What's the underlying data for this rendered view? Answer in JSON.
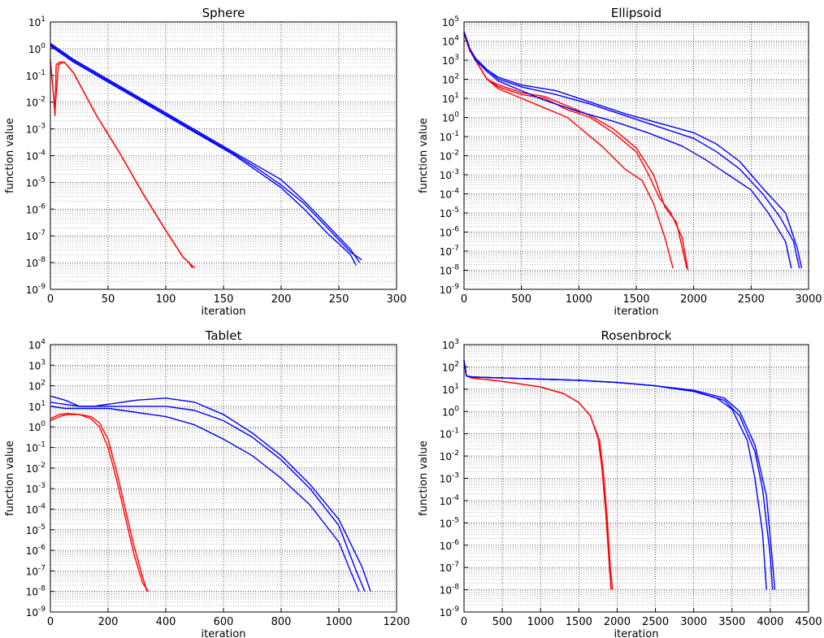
{
  "colors": {
    "red": "#ff0000",
    "blue": "#0000ff",
    "grid": "#000000",
    "axes": "#000000"
  },
  "chart_data": [
    {
      "type": "line",
      "title": "Sphere",
      "xlabel": "iteration",
      "ylabel": "function value",
      "yscale": "log",
      "grid": true,
      "xlim": [
        0,
        300
      ],
      "ylim_exp": [
        -9,
        1
      ],
      "xticks": [
        "0",
        "50",
        "100",
        "150",
        "200",
        "250",
        "300"
      ],
      "series": [
        {
          "color": "red",
          "x": [
            0,
            3,
            4,
            5,
            8,
            12,
            20,
            40,
            60,
            80,
            100,
            115,
            120,
            123
          ],
          "log10y": [
            -0.4,
            -1.9,
            -2.5,
            -0.6,
            -0.5,
            -0.5,
            -0.9,
            -2.5,
            -3.9,
            -5.4,
            -6.8,
            -7.8,
            -8.0,
            -8.2
          ]
        },
        {
          "color": "red",
          "x": [
            0,
            4,
            7,
            12,
            20,
            40,
            60,
            80,
            100,
            115,
            120,
            125
          ],
          "log10y": [
            -0.5,
            -2.3,
            -0.6,
            -0.5,
            -0.9,
            -2.5,
            -3.9,
            -5.4,
            -6.8,
            -7.8,
            -8.0,
            -8.2
          ]
        },
        {
          "color": "blue",
          "x": [
            0,
            20,
            40,
            60,
            80,
            100,
            120,
            140,
            160,
            180,
            200,
            220,
            240,
            260,
            268
          ],
          "log10y": [
            0.2,
            -0.4,
            -0.9,
            -1.4,
            -1.9,
            -2.4,
            -2.9,
            -3.4,
            -3.9,
            -4.4,
            -4.9,
            -5.7,
            -6.6,
            -7.5,
            -8.0
          ]
        },
        {
          "color": "blue",
          "x": [
            0,
            20,
            40,
            60,
            80,
            100,
            120,
            140,
            160,
            180,
            200,
            220,
            240,
            260,
            265
          ],
          "log10y": [
            0.1,
            -0.5,
            -1.0,
            -1.5,
            -2.0,
            -2.5,
            -3.0,
            -3.5,
            -4.0,
            -4.6,
            -5.2,
            -6.0,
            -6.9,
            -7.7,
            -8.1
          ]
        },
        {
          "color": "blue",
          "x": [
            0,
            20,
            40,
            60,
            80,
            100,
            120,
            140,
            160,
            180,
            200,
            220,
            240,
            260,
            270
          ],
          "log10y": [
            0.15,
            -0.45,
            -0.95,
            -1.45,
            -1.95,
            -2.45,
            -2.95,
            -3.45,
            -3.95,
            -4.5,
            -5.1,
            -5.8,
            -6.7,
            -7.6,
            -7.9
          ]
        }
      ]
    },
    {
      "type": "line",
      "title": "Ellipsoid",
      "xlabel": "iteration",
      "ylabel": "function value",
      "yscale": "log",
      "grid": true,
      "xlim": [
        0,
        3000
      ],
      "ylim_exp": [
        -9,
        5
      ],
      "xticks": [
        "0",
        "500",
        "1000",
        "1500",
        "2000",
        "2500",
        "3000"
      ],
      "series": [
        {
          "color": "red",
          "x": [
            0,
            50,
            100,
            200,
            300,
            500,
            700,
            900,
            1000,
            1200,
            1400,
            1550,
            1650,
            1750,
            1820
          ],
          "log10y": [
            4.4,
            3.5,
            3.0,
            2.0,
            1.5,
            1.0,
            0.5,
            0,
            -0.5,
            -1.5,
            -2.7,
            -3.3,
            -4.5,
            -6.3,
            -7.9
          ]
        },
        {
          "color": "red",
          "x": [
            0,
            50,
            100,
            200,
            300,
            500,
            700,
            900,
            1100,
            1300,
            1500,
            1600,
            1700,
            1800,
            1900,
            1950
          ],
          "log10y": [
            4.4,
            3.5,
            3.0,
            2.0,
            1.6,
            1.2,
            1.0,
            0.4,
            0.0,
            -0.8,
            -1.8,
            -2.9,
            -4.2,
            -5.0,
            -6.3,
            -8.0
          ]
        },
        {
          "color": "red",
          "x": [
            0,
            50,
            100,
            200,
            300,
            500,
            700,
            900,
            1100,
            1300,
            1500,
            1650,
            1750,
            1850,
            1940
          ],
          "log10y": [
            4.4,
            3.5,
            3.0,
            2.0,
            1.7,
            1.3,
            1.1,
            0.6,
            0.1,
            -0.6,
            -1.6,
            -3.0,
            -4.7,
            -5.5,
            -7.9
          ]
        },
        {
          "color": "blue",
          "x": [
            0,
            50,
            100,
            200,
            300,
            500,
            700,
            1000,
            1300,
            1600,
            1900,
            2100,
            2300,
            2500,
            2650,
            2800,
            2850
          ],
          "log10y": [
            4.5,
            3.6,
            3.0,
            2.4,
            1.9,
            1.4,
            0.9,
            0.3,
            -0.2,
            -0.8,
            -1.5,
            -2.2,
            -3.0,
            -3.8,
            -5.0,
            -6.5,
            -7.9
          ]
        },
        {
          "color": "blue",
          "x": [
            0,
            50,
            100,
            200,
            300,
            500,
            800,
            1100,
            1400,
            1700,
            2000,
            2200,
            2400,
            2600,
            2750,
            2870,
            2920
          ],
          "log10y": [
            4.5,
            3.6,
            3.1,
            2.5,
            2.0,
            1.6,
            1.2,
            0.7,
            0.1,
            -0.5,
            -1.1,
            -1.8,
            -2.7,
            -4.0,
            -5.2,
            -6.5,
            -7.9
          ]
        },
        {
          "color": "blue",
          "x": [
            0,
            50,
            100,
            200,
            300,
            500,
            800,
            1100,
            1400,
            1700,
            2000,
            2200,
            2400,
            2600,
            2800,
            2900,
            2940
          ],
          "log10y": [
            4.5,
            3.6,
            3.1,
            2.5,
            2.1,
            1.7,
            1.4,
            0.8,
            0.2,
            -0.3,
            -0.8,
            -1.4,
            -2.3,
            -3.7,
            -5.0,
            -6.8,
            -7.9
          ]
        }
      ]
    },
    {
      "type": "line",
      "title": "Tablet",
      "xlabel": "iteration",
      "ylabel": "function value",
      "yscale": "log",
      "grid": true,
      "xlim": [
        0,
        1200
      ],
      "ylim_exp": [
        -9,
        4
      ],
      "xticks": [
        "0",
        "200",
        "400",
        "600",
        "800",
        "1000",
        "1200"
      ],
      "series": [
        {
          "color": "red",
          "x": [
            0,
            30,
            60,
            100,
            140,
            170,
            200,
            230,
            260,
            290,
            320,
            335
          ],
          "log10y": [
            0.3,
            0.5,
            0.6,
            0.6,
            0.5,
            0.2,
            -0.6,
            -2.2,
            -4.0,
            -5.8,
            -7.3,
            -8.0
          ]
        },
        {
          "color": "red",
          "x": [
            0,
            30,
            60,
            100,
            140,
            170,
            200,
            230,
            260,
            290,
            320,
            340
          ],
          "log10y": [
            0.4,
            0.6,
            0.65,
            0.6,
            0.4,
            0.0,
            -1.0,
            -2.6,
            -4.4,
            -6.2,
            -7.6,
            -8.0
          ]
        },
        {
          "color": "blue",
          "x": [
            0,
            50,
            100,
            150,
            200,
            300,
            400,
            500,
            600,
            700,
            800,
            900,
            1000,
            1080,
            1110
          ],
          "log10y": [
            1.5,
            1.3,
            1.0,
            1.0,
            1.1,
            1.3,
            1.4,
            1.2,
            0.6,
            -0.3,
            -1.4,
            -2.8,
            -4.5,
            -6.8,
            -8.0
          ]
        },
        {
          "color": "blue",
          "x": [
            0,
            50,
            100,
            150,
            200,
            300,
            400,
            500,
            600,
            700,
            800,
            900,
            1000,
            1060,
            1090
          ],
          "log10y": [
            1.2,
            1.1,
            1.0,
            1.0,
            1.0,
            1.0,
            1.0,
            0.8,
            0.3,
            -0.5,
            -1.6,
            -3.0,
            -4.8,
            -7.0,
            -8.0
          ]
        },
        {
          "color": "blue",
          "x": [
            0,
            50,
            100,
            150,
            200,
            300,
            400,
            500,
            600,
            700,
            800,
            900,
            1000,
            1040,
            1070
          ],
          "log10y": [
            1.0,
            0.9,
            0.9,
            0.9,
            0.9,
            0.7,
            0.5,
            0.1,
            -0.6,
            -1.4,
            -2.5,
            -3.8,
            -5.6,
            -7.0,
            -8.0
          ]
        }
      ]
    },
    {
      "type": "line",
      "title": "Rosenbrock",
      "xlabel": "iteration",
      "ylabel": "function value",
      "yscale": "log",
      "grid": true,
      "xlim": [
        0,
        4500
      ],
      "ylim_exp": [
        -9,
        3
      ],
      "xticks": [
        "0",
        "500",
        "1000",
        "1500",
        "2000",
        "2500",
        "3000",
        "3500",
        "4000",
        "4500"
      ],
      "series": [
        {
          "color": "red",
          "x": [
            0,
            30,
            100,
            500,
            1000,
            1300,
            1500,
            1650,
            1750,
            1800,
            1850,
            1900,
            1920
          ],
          "log10y": [
            2.3,
            1.6,
            1.5,
            1.35,
            1.1,
            0.8,
            0.4,
            -0.2,
            -1.2,
            -2.5,
            -4.5,
            -7.0,
            -8.0
          ]
        },
        {
          "color": "red",
          "x": [
            0,
            30,
            100,
            500,
            1000,
            1300,
            1500,
            1650,
            1770,
            1820,
            1870,
            1910,
            1940
          ],
          "log10y": [
            2.3,
            1.6,
            1.5,
            1.35,
            1.1,
            0.8,
            0.4,
            -0.2,
            -1.3,
            -2.7,
            -4.8,
            -7.0,
            -8.0
          ]
        },
        {
          "color": "blue",
          "x": [
            0,
            30,
            100,
            500,
            1000,
            1500,
            2000,
            2500,
            3000,
            3300,
            3500,
            3700,
            3800,
            3900,
            3950
          ],
          "log10y": [
            2.3,
            1.6,
            1.55,
            1.5,
            1.45,
            1.4,
            1.3,
            1.15,
            0.9,
            0.6,
            0.1,
            -1.3,
            -3.0,
            -5.5,
            -8.0
          ]
        },
        {
          "color": "blue",
          "x": [
            0,
            30,
            100,
            500,
            1000,
            1500,
            2000,
            2500,
            3000,
            3400,
            3600,
            3800,
            3900,
            4000,
            4030
          ],
          "log10y": [
            2.3,
            1.6,
            1.55,
            1.5,
            1.45,
            1.4,
            1.3,
            1.15,
            0.9,
            0.5,
            -0.2,
            -1.8,
            -3.5,
            -6.5,
            -8.0
          ]
        },
        {
          "color": "blue",
          "x": [
            0,
            30,
            100,
            500,
            1000,
            1500,
            2000,
            2500,
            3000,
            3400,
            3600,
            3800,
            3950,
            4030,
            4060
          ],
          "log10y": [
            2.3,
            1.6,
            1.55,
            1.5,
            1.45,
            1.4,
            1.3,
            1.15,
            0.95,
            0.6,
            0.0,
            -1.5,
            -3.8,
            -6.8,
            -8.0
          ]
        }
      ]
    }
  ]
}
